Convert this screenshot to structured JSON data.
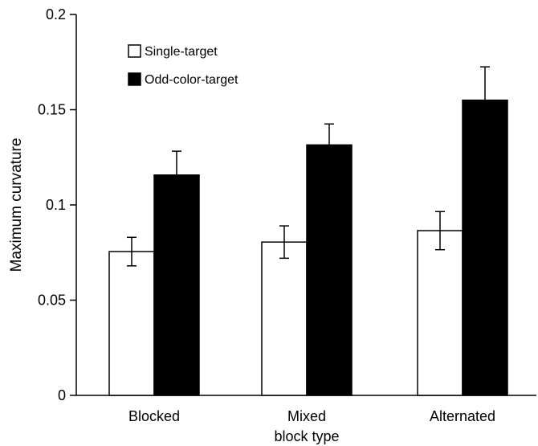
{
  "chart_data": {
    "type": "bar",
    "title": "",
    "xlabel": "block type",
    "ylabel": "Maximum curvature",
    "ylim": [
      0,
      0.2
    ],
    "yticks": [
      0,
      0.05,
      0.1,
      0.15,
      0.2
    ],
    "ytick_labels": [
      "0",
      "0.05",
      "0.1",
      "0.15",
      "0.2"
    ],
    "categories": [
      "Blocked",
      "Mixed",
      "Alternated"
    ],
    "series": [
      {
        "name": "Single-target",
        "color": "#ffffff",
        "values": [
          0.0755,
          0.0805,
          0.0865
        ],
        "errors": [
          0.0075,
          0.0085,
          0.01
        ]
      },
      {
        "name": "Odd-color-target",
        "color": "#000000",
        "values": [
          0.1157,
          0.1315,
          0.155
        ],
        "errors": [
          0.0125,
          0.011,
          0.0175
        ]
      }
    ],
    "legend_position": "top-left",
    "grid": false
  }
}
